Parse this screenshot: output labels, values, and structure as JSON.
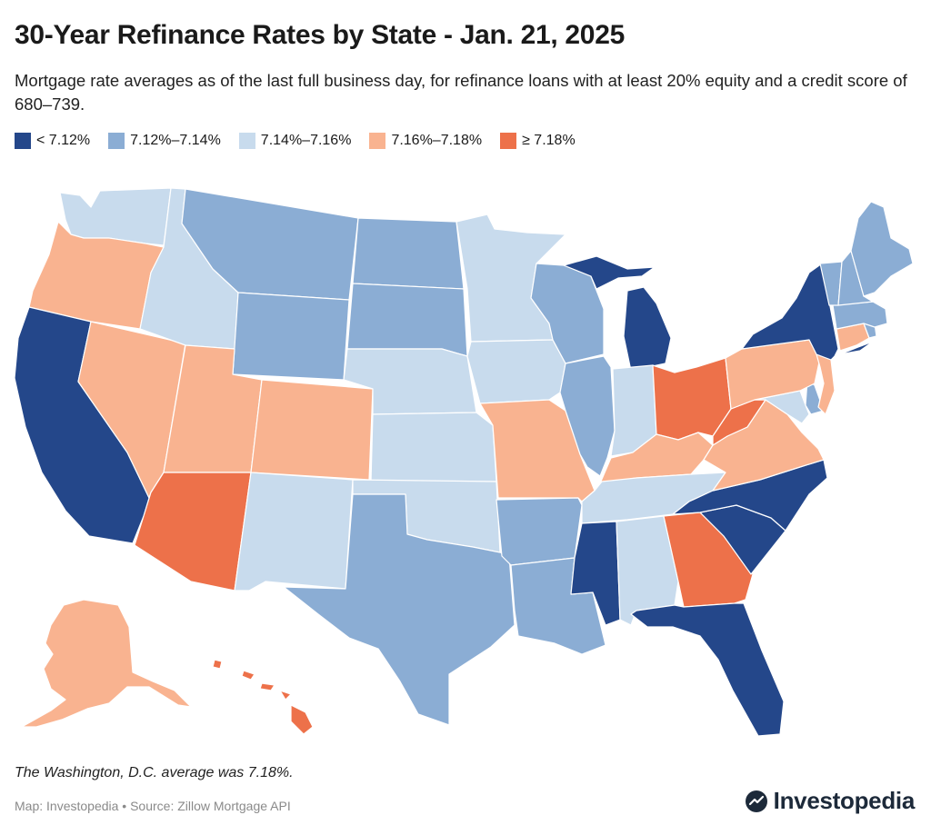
{
  "title": "30-Year Refinance Rates by State - Jan. 21, 2025",
  "subtitle": "Mortgage rate averages as of the last full business day, for refinance loans with at least 20% equity and a credit score of 680–739.",
  "legend": [
    {
      "label": "< 7.12%",
      "color": "#24478a"
    },
    {
      "label": "7.12%–7.14%",
      "color": "#8badd4"
    },
    {
      "label": "7.14%–7.16%",
      "color": "#c8dbed"
    },
    {
      "label": "7.16%–7.18%",
      "color": "#f9b390"
    },
    {
      "label": "≥ 7.18%",
      "color": "#ed714a"
    }
  ],
  "states": [
    {
      "name": "Washington",
      "abbr": "WA",
      "bin": 2
    },
    {
      "name": "Oregon",
      "abbr": "OR",
      "bin": 3
    },
    {
      "name": "California",
      "abbr": "CA",
      "bin": 0
    },
    {
      "name": "Nevada",
      "abbr": "NV",
      "bin": 3
    },
    {
      "name": "Idaho",
      "abbr": "ID",
      "bin": 2
    },
    {
      "name": "Montana",
      "abbr": "MT",
      "bin": 1
    },
    {
      "name": "Wyoming",
      "abbr": "WY",
      "bin": 1
    },
    {
      "name": "Utah",
      "abbr": "UT",
      "bin": 3
    },
    {
      "name": "Arizona",
      "abbr": "AZ",
      "bin": 4
    },
    {
      "name": "Colorado",
      "abbr": "CO",
      "bin": 3
    },
    {
      "name": "New Mexico",
      "abbr": "NM",
      "bin": 2
    },
    {
      "name": "North Dakota",
      "abbr": "ND",
      "bin": 1
    },
    {
      "name": "South Dakota",
      "abbr": "SD",
      "bin": 1
    },
    {
      "name": "Nebraska",
      "abbr": "NE",
      "bin": 2
    },
    {
      "name": "Kansas",
      "abbr": "KS",
      "bin": 2
    },
    {
      "name": "Oklahoma",
      "abbr": "OK",
      "bin": 2
    },
    {
      "name": "Texas",
      "abbr": "TX",
      "bin": 1
    },
    {
      "name": "Minnesota",
      "abbr": "MN",
      "bin": 2
    },
    {
      "name": "Iowa",
      "abbr": "IA",
      "bin": 2
    },
    {
      "name": "Missouri",
      "abbr": "MO",
      "bin": 3
    },
    {
      "name": "Arkansas",
      "abbr": "AR",
      "bin": 1
    },
    {
      "name": "Louisiana",
      "abbr": "LA",
      "bin": 1
    },
    {
      "name": "Wisconsin",
      "abbr": "WI",
      "bin": 1
    },
    {
      "name": "Illinois",
      "abbr": "IL",
      "bin": 1
    },
    {
      "name": "Michigan",
      "abbr": "MI",
      "bin": 0
    },
    {
      "name": "Indiana",
      "abbr": "IN",
      "bin": 2
    },
    {
      "name": "Ohio",
      "abbr": "OH",
      "bin": 4
    },
    {
      "name": "Kentucky",
      "abbr": "KY",
      "bin": 3
    },
    {
      "name": "Tennessee",
      "abbr": "TN",
      "bin": 2
    },
    {
      "name": "Mississippi",
      "abbr": "MS",
      "bin": 0
    },
    {
      "name": "Alabama",
      "abbr": "AL",
      "bin": 2
    },
    {
      "name": "Georgia",
      "abbr": "GA",
      "bin": 4
    },
    {
      "name": "Florida",
      "abbr": "FL",
      "bin": 0
    },
    {
      "name": "South Carolina",
      "abbr": "SC",
      "bin": 0
    },
    {
      "name": "North Carolina",
      "abbr": "NC",
      "bin": 0
    },
    {
      "name": "Virginia",
      "abbr": "VA",
      "bin": 3
    },
    {
      "name": "West Virginia",
      "abbr": "WV",
      "bin": 4
    },
    {
      "name": "Maryland",
      "abbr": "MD",
      "bin": 2
    },
    {
      "name": "Delaware",
      "abbr": "DE",
      "bin": 1
    },
    {
      "name": "Pennsylvania",
      "abbr": "PA",
      "bin": 3
    },
    {
      "name": "New Jersey",
      "abbr": "NJ",
      "bin": 3
    },
    {
      "name": "New York",
      "abbr": "NY",
      "bin": 0
    },
    {
      "name": "Connecticut",
      "abbr": "CT",
      "bin": 3
    },
    {
      "name": "Rhode Island",
      "abbr": "RI",
      "bin": 1
    },
    {
      "name": "Massachusetts",
      "abbr": "MA",
      "bin": 1
    },
    {
      "name": "Vermont",
      "abbr": "VT",
      "bin": 1
    },
    {
      "name": "New Hampshire",
      "abbr": "NH",
      "bin": 1
    },
    {
      "name": "Maine",
      "abbr": "ME",
      "bin": 1
    },
    {
      "name": "Alaska",
      "abbr": "AK",
      "bin": 3
    },
    {
      "name": "Hawaii",
      "abbr": "HI",
      "bin": 4
    }
  ],
  "footnote": "The Washington, D.C. average was 7.18%.",
  "source": "Map: Investopedia • Source: Zillow Mortgage API",
  "brand": "Investopedia"
}
